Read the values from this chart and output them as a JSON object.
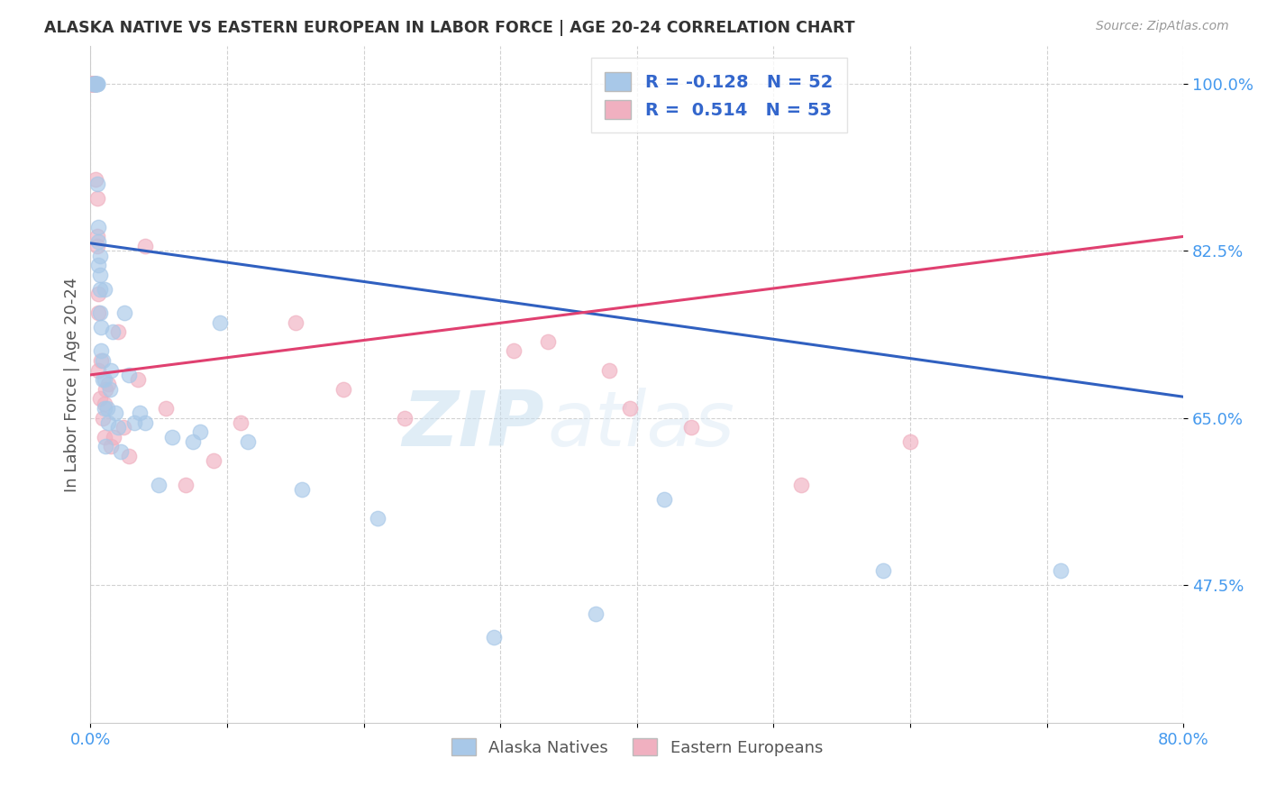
{
  "title": "ALASKA NATIVE VS EASTERN EUROPEAN IN LABOR FORCE | AGE 20-24 CORRELATION CHART",
  "source": "Source: ZipAtlas.com",
  "ylabel": "In Labor Force | Age 20-24",
  "xlim": [
    0.0,
    0.8
  ],
  "ylim": [
    0.33,
    1.04
  ],
  "ytick_positions": [
    0.475,
    0.65,
    0.825,
    1.0
  ],
  "ytick_labels": [
    "47.5%",
    "65.0%",
    "82.5%",
    "100.0%"
  ],
  "blue_R": -0.128,
  "blue_N": 52,
  "pink_R": 0.514,
  "pink_N": 53,
  "blue_color": "#a8c8e8",
  "pink_color": "#f0b0c0",
  "blue_line_color": "#3060c0",
  "pink_line_color": "#e04070",
  "watermark_zip": "ZIP",
  "watermark_atlas": "atlas",
  "legend_label_blue": "Alaska Natives",
  "legend_label_pink": "Eastern Europeans",
  "blue_line_x0": 0.0,
  "blue_line_y0": 0.833,
  "blue_line_x1": 0.8,
  "blue_line_y1": 0.672,
  "pink_line_x0": 0.0,
  "pink_line_y0": 0.695,
  "pink_line_x1": 0.8,
  "pink_line_y1": 0.84,
  "alaska_x": [
    0.002,
    0.003,
    0.003,
    0.004,
    0.004,
    0.004,
    0.004,
    0.005,
    0.005,
    0.005,
    0.005,
    0.006,
    0.006,
    0.006,
    0.007,
    0.007,
    0.007,
    0.007,
    0.008,
    0.008,
    0.009,
    0.009,
    0.01,
    0.01,
    0.01,
    0.011,
    0.012,
    0.013,
    0.014,
    0.015,
    0.016,
    0.018,
    0.02,
    0.022,
    0.025,
    0.028,
    0.032,
    0.036,
    0.04,
    0.05,
    0.06,
    0.08,
    0.095,
    0.115,
    0.155,
    0.21,
    0.295,
    0.37,
    0.42,
    0.58,
    0.71,
    0.075
  ],
  "alaska_y": [
    1.0,
    1.0,
    1.0,
    1.0,
    1.0,
    1.0,
    1.0,
    1.0,
    1.0,
    1.0,
    0.895,
    0.81,
    0.835,
    0.85,
    0.76,
    0.785,
    0.8,
    0.82,
    0.72,
    0.745,
    0.69,
    0.71,
    0.66,
    0.69,
    0.785,
    0.62,
    0.66,
    0.645,
    0.68,
    0.7,
    0.74,
    0.655,
    0.64,
    0.615,
    0.76,
    0.695,
    0.645,
    0.655,
    0.645,
    0.58,
    0.63,
    0.635,
    0.75,
    0.625,
    0.575,
    0.545,
    0.42,
    0.445,
    0.565,
    0.49,
    0.49,
    0.625
  ],
  "eastern_x": [
    0.001,
    0.001,
    0.001,
    0.001,
    0.002,
    0.002,
    0.002,
    0.002,
    0.002,
    0.002,
    0.002,
    0.003,
    0.003,
    0.003,
    0.003,
    0.003,
    0.004,
    0.004,
    0.004,
    0.005,
    0.005,
    0.005,
    0.006,
    0.006,
    0.006,
    0.007,
    0.008,
    0.009,
    0.01,
    0.01,
    0.011,
    0.013,
    0.015,
    0.017,
    0.02,
    0.024,
    0.028,
    0.035,
    0.04,
    0.055,
    0.07,
    0.09,
    0.11,
    0.15,
    0.185,
    0.23,
    0.31,
    0.38,
    0.44,
    0.52,
    0.6,
    0.395,
    0.335
  ],
  "eastern_y": [
    1.0,
    1.0,
    1.0,
    1.0,
    1.0,
    1.0,
    1.0,
    1.0,
    1.0,
    1.0,
    1.0,
    1.0,
    1.0,
    1.0,
    1.0,
    1.0,
    1.0,
    1.0,
    0.9,
    0.84,
    0.88,
    0.83,
    0.78,
    0.76,
    0.7,
    0.67,
    0.71,
    0.65,
    0.63,
    0.665,
    0.68,
    0.685,
    0.62,
    0.63,
    0.74,
    0.64,
    0.61,
    0.69,
    0.83,
    0.66,
    0.58,
    0.605,
    0.645,
    0.75,
    0.68,
    0.65,
    0.72,
    0.7,
    0.64,
    0.58,
    0.625,
    0.66,
    0.73
  ]
}
